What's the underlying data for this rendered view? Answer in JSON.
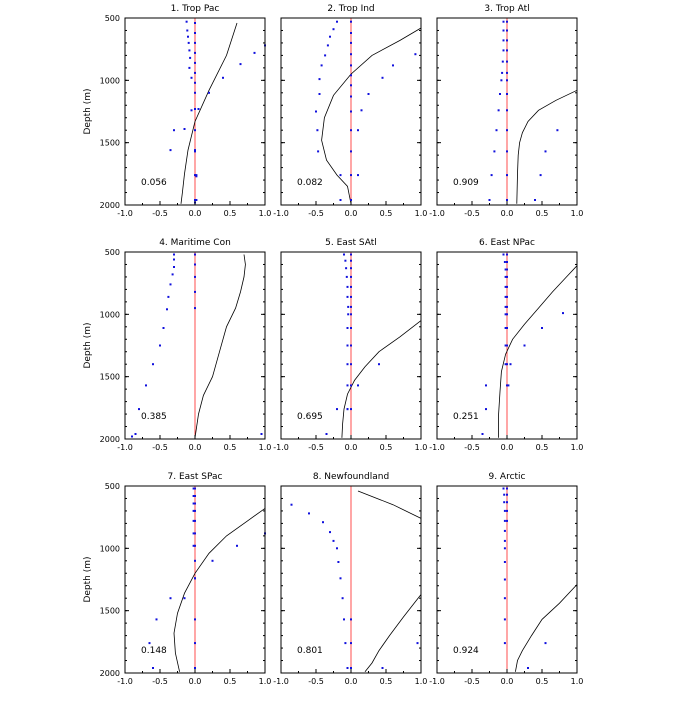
{
  "figure": {
    "ylabel": "Depth (m)",
    "colors": {
      "dots": "#1010dd",
      "zero_line": "#ff3b3b",
      "curve": "#000000",
      "frame": "#000000"
    }
  },
  "chart_data": [
    {
      "type": "scatter",
      "title": "1. Trop Pac",
      "value": "0.056",
      "xlim": [
        -1,
        1
      ],
      "ylim": [
        2000,
        500
      ],
      "xticks": [
        "-1.0",
        "-0.5",
        "0.0",
        "0.5",
        "1.0"
      ],
      "yticks": [
        "500",
        "1000",
        "1500",
        "2000"
      ],
      "series": [
        {
          "type": "line",
          "x": [
            0.6,
            0.45,
            0.2,
            0.0,
            -0.1,
            -0.15,
            -0.18,
            -0.2
          ],
          "y": [
            540,
            800,
            1080,
            1330,
            1560,
            1750,
            1900,
            1990
          ]
        },
        {
          "type": "scatter",
          "x": [
            -0.12,
            -0.11,
            -0.1,
            -0.09,
            -0.08,
            -0.07,
            -0.08,
            -0.05,
            0.2,
            0.4,
            0.65,
            0.85,
            1.0,
            0.05,
            -0.05,
            -0.15,
            -0.3,
            -0.35,
            0.0,
            0.02,
            0.02,
            0.02
          ],
          "y": [
            530,
            600,
            650,
            700,
            760,
            820,
            900,
            980,
            1100,
            980,
            870,
            780,
            720,
            1230,
            1240,
            1390,
            1400,
            1560,
            1570,
            1760,
            1770,
            1960
          ]
        },
        {
          "type": "scatter",
          "x": [
            0.0,
            0.0,
            0.0,
            0.0,
            0.0,
            0.0,
            0.0,
            0.0,
            0.0,
            0.0,
            0.0,
            0.0,
            0.0,
            0.0
          ],
          "y": [
            540,
            620,
            700,
            780,
            860,
            940,
            1020,
            1100,
            1230,
            1400,
            1560,
            1760,
            1960,
            1980
          ]
        }
      ]
    },
    {
      "type": "scatter",
      "title": "2. Trop Ind",
      "value": "0.082",
      "xlim": [
        -1,
        1
      ],
      "ylim": [
        2000,
        500
      ],
      "xticks": [
        "-1.0",
        "-0.5",
        "0.0",
        "0.5",
        "1.0"
      ],
      "yticks": [
        "500",
        "1000",
        "1500",
        "2000"
      ],
      "series": [
        {
          "type": "line",
          "x": [
            1.0,
            0.7,
            0.3,
            0.0,
            -0.25,
            -0.38,
            -0.42,
            -0.35,
            -0.2,
            -0.05,
            0.0
          ],
          "y": [
            580,
            680,
            800,
            950,
            1120,
            1300,
            1480,
            1640,
            1760,
            1850,
            1990
          ]
        },
        {
          "type": "scatter",
          "x": [
            -0.2,
            -0.25,
            -0.3,
            -0.33,
            -0.37,
            -0.42,
            -0.45,
            -0.45,
            -0.5,
            -0.48,
            -0.47,
            -0.15,
            0.92,
            0.6,
            0.45,
            0.25,
            0.15,
            0.1,
            0.1,
            -0.15
          ],
          "y": [
            530,
            590,
            650,
            720,
            800,
            880,
            990,
            1110,
            1250,
            1400,
            1570,
            1760,
            790,
            880,
            980,
            1110,
            1240,
            1400,
            1760,
            1960
          ]
        },
        {
          "type": "scatter",
          "x": [
            0.0,
            0.0,
            0.0,
            0.0,
            0.0,
            0.0,
            0.0,
            0.0,
            0.0,
            0.0,
            0.0,
            0.0,
            0.0
          ],
          "y": [
            530,
            620,
            700,
            790,
            880,
            960,
            1040,
            1130,
            1250,
            1400,
            1570,
            1760,
            1960
          ]
        }
      ]
    },
    {
      "type": "scatter",
      "title": "3. Trop Atl",
      "value": "0.909",
      "xlim": [
        -1,
        1
      ],
      "ylim": [
        2000,
        500
      ],
      "xticks": [
        "-1.0",
        "-0.5",
        "0.0",
        "0.5",
        "1.0"
      ],
      "yticks": [
        "500",
        "1000",
        "1500",
        "2000"
      ],
      "series": [
        {
          "type": "line",
          "x": [
            1.0,
            0.7,
            0.45,
            0.3,
            0.22,
            0.18,
            0.16,
            0.15,
            0.14
          ],
          "y": [
            1080,
            1160,
            1240,
            1330,
            1420,
            1500,
            1600,
            1750,
            1990
          ]
        },
        {
          "type": "scatter",
          "x": [
            -0.05,
            -0.05,
            -0.05,
            -0.05,
            -0.06,
            -0.07,
            -0.08,
            -0.1,
            -0.12,
            -0.15,
            -0.18,
            -0.22,
            -0.25,
            0.72,
            0.55,
            0.48,
            0.4
          ],
          "y": [
            530,
            600,
            680,
            760,
            850,
            940,
            1000,
            1110,
            1240,
            1400,
            1570,
            1760,
            1960,
            1400,
            1570,
            1760,
            1960
          ]
        },
        {
          "type": "scatter",
          "x": [
            0.0,
            0.0,
            0.0,
            0.0,
            0.0,
            0.0,
            0.0,
            0.0,
            0.0,
            0.0,
            0.0,
            0.0,
            0.0
          ],
          "y": [
            530,
            600,
            680,
            760,
            850,
            940,
            1000,
            1110,
            1240,
            1400,
            1570,
            1760,
            1960
          ]
        }
      ]
    },
    {
      "type": "scatter",
      "title": "4. Maritime Con",
      "value": "0.385",
      "xlim": [
        -1,
        1
      ],
      "ylim": [
        2000,
        500
      ],
      "xticks": [
        "-1.0",
        "-0.5",
        "0.0",
        "0.5",
        "1.0"
      ],
      "yticks": [
        "500",
        "1000",
        "1500",
        "2000"
      ],
      "series": [
        {
          "type": "line",
          "x": [
            0.7,
            0.72,
            0.7,
            0.65,
            0.58,
            0.45,
            0.35,
            0.25,
            0.12,
            0.05,
            0.0
          ],
          "y": [
            520,
            600,
            700,
            820,
            950,
            1100,
            1300,
            1500,
            1650,
            1800,
            1990
          ]
        },
        {
          "type": "scatter",
          "x": [
            -0.3,
            -0.3,
            -0.3,
            -0.32,
            -0.35,
            -0.38,
            -0.4,
            -0.45,
            -0.5,
            -0.6,
            -0.7,
            -0.8,
            -0.85,
            -0.9,
            0.95
          ],
          "y": [
            520,
            560,
            620,
            680,
            760,
            860,
            960,
            1110,
            1250,
            1400,
            1570,
            1760,
            1960,
            1980,
            1960
          ]
        },
        {
          "type": "scatter",
          "x": [
            0.0,
            0.0,
            0.0,
            0.0,
            0.0
          ],
          "y": [
            520,
            600,
            700,
            820,
            950
          ]
        }
      ]
    },
    {
      "type": "scatter",
      "title": "5. East SAtl",
      "value": "0.695",
      "xlim": [
        -1,
        1
      ],
      "ylim": [
        2000,
        500
      ],
      "xticks": [
        "-1.0",
        "-0.5",
        "0.0",
        "0.5",
        "1.0"
      ],
      "yticks": [
        "500",
        "1000",
        "1500",
        "2000"
      ],
      "series": [
        {
          "type": "line",
          "x": [
            1.0,
            0.7,
            0.4,
            0.2,
            0.05,
            -0.05,
            -0.1,
            -0.12,
            -0.13
          ],
          "y": [
            1050,
            1180,
            1300,
            1420,
            1530,
            1640,
            1760,
            1880,
            1990
          ]
        },
        {
          "type": "scatter",
          "x": [
            -0.1,
            -0.08,
            -0.07,
            -0.06,
            -0.05,
            -0.05,
            -0.04,
            -0.04,
            -0.05,
            -0.05,
            -0.05,
            -0.05,
            -0.05,
            0.4,
            0.1,
            -0.05,
            -0.2,
            -0.35
          ],
          "y": [
            520,
            570,
            630,
            700,
            780,
            860,
            940,
            1000,
            1110,
            1250,
            1400,
            1570,
            1760,
            1400,
            1570,
            1760,
            1760,
            1960
          ]
        },
        {
          "type": "scatter",
          "x": [
            0.0,
            0.0,
            0.0,
            0.0,
            0.0,
            0.0,
            0.0,
            0.0,
            0.0,
            0.0,
            0.0,
            0.0,
            0.0
          ],
          "y": [
            520,
            570,
            630,
            700,
            780,
            860,
            940,
            1000,
            1110,
            1250,
            1400,
            1570,
            1760
          ]
        }
      ]
    },
    {
      "type": "scatter",
      "title": "6. East NPac",
      "value": "0.251",
      "xlim": [
        -1,
        1
      ],
      "ylim": [
        2000,
        500
      ],
      "xticks": [
        "-1.0",
        "-0.5",
        "0.0",
        "0.5",
        "1.0"
      ],
      "yticks": [
        "500",
        "1000",
        "1500",
        "2000"
      ],
      "series": [
        {
          "type": "line",
          "x": [
            1.0,
            0.85,
            0.65,
            0.45,
            0.25,
            0.08,
            -0.02,
            -0.08,
            -0.1,
            -0.12,
            -0.12
          ],
          "y": [
            610,
            700,
            820,
            950,
            1080,
            1200,
            1320,
            1460,
            1620,
            1800,
            1990
          ]
        },
        {
          "type": "scatter",
          "x": [
            -0.05,
            -0.03,
            -0.02,
            -0.02,
            -0.02,
            -0.02,
            -0.02,
            -0.02,
            -0.02,
            -0.02,
            -0.02,
            0.8,
            0.5,
            0.25,
            0.05,
            0.02,
            -0.3,
            -0.3,
            -0.35
          ],
          "y": [
            520,
            580,
            640,
            700,
            780,
            860,
            940,
            1000,
            1110,
            1250,
            1400,
            990,
            1110,
            1250,
            1400,
            1570,
            1570,
            1760,
            1960
          ]
        },
        {
          "type": "scatter",
          "x": [
            0.0,
            0.0,
            0.0,
            0.0,
            0.0,
            0.0,
            0.0,
            0.0,
            0.0,
            0.0,
            0.0,
            0.0
          ],
          "y": [
            520,
            580,
            640,
            700,
            780,
            860,
            940,
            1000,
            1110,
            1250,
            1400,
            1570
          ]
        }
      ]
    },
    {
      "type": "scatter",
      "title": "7. East SPac",
      "value": "0.148",
      "xlim": [
        -1,
        1
      ],
      "ylim": [
        2000,
        500
      ],
      "xticks": [
        "-1.0",
        "-0.5",
        "0.0",
        "0.5",
        "1.0"
      ],
      "yticks": [
        "500",
        "1000",
        "1500",
        "2000"
      ],
      "series": [
        {
          "type": "line",
          "x": [
            1.0,
            0.75,
            0.45,
            0.2,
            0.0,
            -0.15,
            -0.25,
            -0.3,
            -0.28,
            -0.22
          ],
          "y": [
            680,
            780,
            900,
            1040,
            1200,
            1360,
            1520,
            1680,
            1840,
            1990
          ]
        },
        {
          "type": "scatter",
          "x": [
            -0.02,
            -0.02,
            -0.02,
            -0.02,
            -0.02,
            -0.02,
            -0.02,
            1.0,
            0.6,
            0.25,
            0.0,
            -0.15,
            -0.35,
            -0.55,
            -0.65,
            -0.6
          ],
          "y": [
            520,
            580,
            640,
            700,
            780,
            880,
            980,
            880,
            980,
            1100,
            1240,
            1400,
            1400,
            1570,
            1760,
            1960
          ]
        },
        {
          "type": "scatter",
          "x": [
            0.0,
            0.0,
            0.0,
            0.0,
            0.0,
            0.0,
            0.0,
            0.0,
            0.0,
            0.0,
            0.0,
            0.0
          ],
          "y": [
            520,
            580,
            640,
            700,
            780,
            880,
            980,
            1100,
            1240,
            1570,
            1760,
            1960
          ]
        }
      ]
    },
    {
      "type": "scatter",
      "title": "8. Newfoundland",
      "value": "0.801",
      "xlim": [
        -1,
        1
      ],
      "ylim": [
        2000,
        500
      ],
      "xticks": [
        "-1.0",
        "-0.5",
        "0.0",
        "0.5",
        "1.0"
      ],
      "yticks": [
        "500",
        "1000",
        "1500",
        "2000"
      ],
      "series": [
        {
          "type": "line",
          "x": [
            0.1,
            0.6,
            1.0
          ],
          "y": [
            540,
            650,
            760
          ]
        },
        {
          "type": "line",
          "x": [
            1.0,
            0.75,
            0.55,
            0.4,
            0.3,
            0.2
          ],
          "y": [
            1370,
            1550,
            1700,
            1820,
            1920,
            1990
          ]
        },
        {
          "type": "scatter",
          "x": [
            -0.85,
            -0.6,
            -0.4,
            -0.3,
            -0.25,
            -0.2,
            -0.18,
            -0.15,
            -0.12,
            -0.1,
            -0.08,
            -0.05,
            0.95,
            0.45
          ],
          "y": [
            650,
            720,
            790,
            870,
            940,
            1000,
            1110,
            1240,
            1400,
            1570,
            1760,
            1960,
            1760,
            1960
          ]
        },
        {
          "type": "scatter",
          "x": [
            0.0,
            0.0,
            0.0
          ],
          "y": [
            1570,
            1760,
            1960
          ]
        }
      ]
    },
    {
      "type": "scatter",
      "title": "9. Arctic",
      "value": "0.924",
      "xlim": [
        -1,
        1
      ],
      "ylim": [
        2000,
        500
      ],
      "xticks": [
        "-1.0",
        "-0.5",
        "0.0",
        "0.5",
        "1.0"
      ],
      "yticks": [
        "500",
        "1000",
        "1500",
        "2000"
      ],
      "series": [
        {
          "type": "line",
          "x": [
            1.0,
            0.75,
            0.5,
            0.35,
            0.22,
            0.15,
            0.12
          ],
          "y": [
            1290,
            1440,
            1570,
            1700,
            1820,
            1900,
            1990
          ]
        },
        {
          "type": "scatter",
          "x": [
            -0.05,
            -0.04,
            -0.04,
            -0.03,
            -0.03,
            -0.03,
            -0.03,
            -0.03,
            -0.03,
            -0.03,
            -0.03,
            -0.03,
            -0.03,
            0.55,
            0.3
          ],
          "y": [
            520,
            570,
            630,
            700,
            780,
            860,
            940,
            1000,
            1110,
            1250,
            1400,
            1570,
            1760,
            1760,
            1960
          ]
        },
        {
          "type": "scatter",
          "x": [
            0.0,
            0.0,
            0.0,
            0.0,
            0.0
          ],
          "y": [
            520,
            570,
            630,
            700,
            780
          ]
        }
      ]
    }
  ]
}
